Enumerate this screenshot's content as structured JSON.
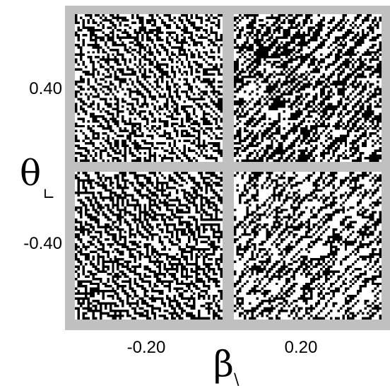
{
  "figure": {
    "frame_color": "#c0c0c0",
    "on_color": "#000000",
    "off_color": "#ffffff",
    "grid_columns": 2,
    "grid_rows": 2
  },
  "x_axis": {
    "symbol": "β",
    "subscript": "\\",
    "tick_labels": [
      "-0.20",
      "0.20"
    ]
  },
  "y_axis": {
    "symbol": "θ",
    "subscript": "∟",
    "tick_labels": [
      "0.40",
      "-0.40"
    ]
  },
  "panels": [
    {
      "beta": -0.2,
      "theta": 0.4
    },
    {
      "beta": 0.2,
      "theta": 0.4
    },
    {
      "beta": -0.2,
      "theta": -0.4
    },
    {
      "beta": 0.2,
      "theta": -0.4
    }
  ]
}
